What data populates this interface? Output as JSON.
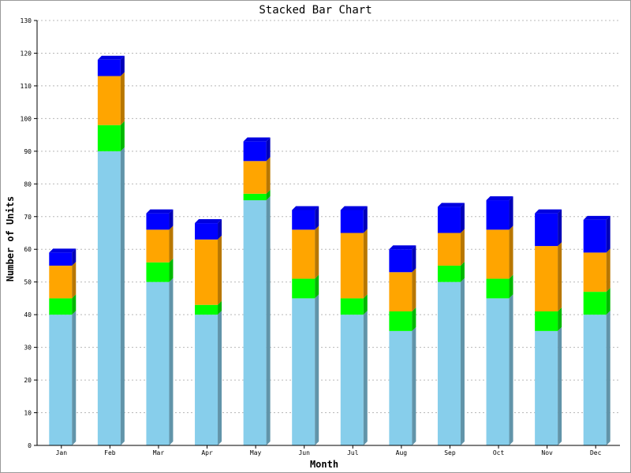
{
  "chart_data": {
    "type": "bar",
    "stacked": true,
    "title": "Stacked Bar Chart",
    "xlabel": "Month",
    "ylabel": "Number of Units",
    "ylim": [
      0,
      130
    ],
    "ytick_step": 10,
    "grid": true,
    "categories": [
      "Jan",
      "Feb",
      "Mar",
      "Apr",
      "May",
      "Jun",
      "Jul",
      "Aug",
      "Sep",
      "Oct",
      "Nov",
      "Dec"
    ],
    "series": [
      {
        "color": "#87ceeb",
        "values": [
          40,
          90,
          50,
          40,
          75,
          45,
          40,
          35,
          50,
          45,
          35,
          40
        ]
      },
      {
        "color": "#00ff00",
        "values": [
          5,
          8,
          6,
          3,
          2,
          6,
          5,
          6,
          5,
          6,
          6,
          7
        ]
      },
      {
        "color": "#ffa500",
        "values": [
          10,
          15,
          10,
          20,
          10,
          15,
          20,
          12,
          10,
          15,
          20,
          12
        ]
      },
      {
        "color": "#0000ff",
        "values": [
          4,
          5,
          5,
          5,
          6,
          6,
          7,
          7,
          8,
          9,
          10,
          10
        ]
      }
    ]
  }
}
